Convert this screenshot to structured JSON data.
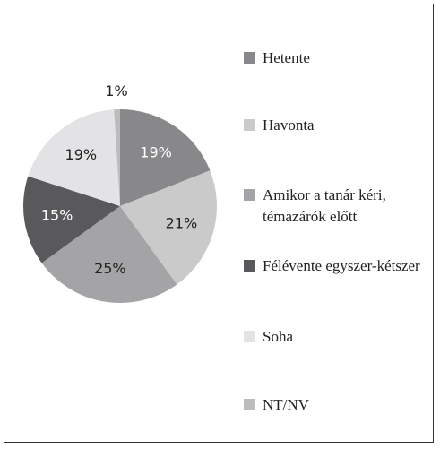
{
  "chart_data": {
    "type": "pie",
    "categories": [
      "Hetente",
      "Havonta",
      "Amikor a tanár kéri, témazárók előtt",
      "Félévente egyszer-kétszer",
      "Soha",
      "NT/NV"
    ],
    "values": [
      19,
      21,
      25,
      15,
      19,
      1
    ],
    "value_labels": [
      "19%",
      "21%",
      "25%",
      "15%",
      "19%",
      "1%"
    ],
    "colors": [
      "#88888a",
      "#cacaca",
      "#a4a4a6",
      "#59595b",
      "#e3e3e5",
      "#bcbcbc"
    ]
  }
}
